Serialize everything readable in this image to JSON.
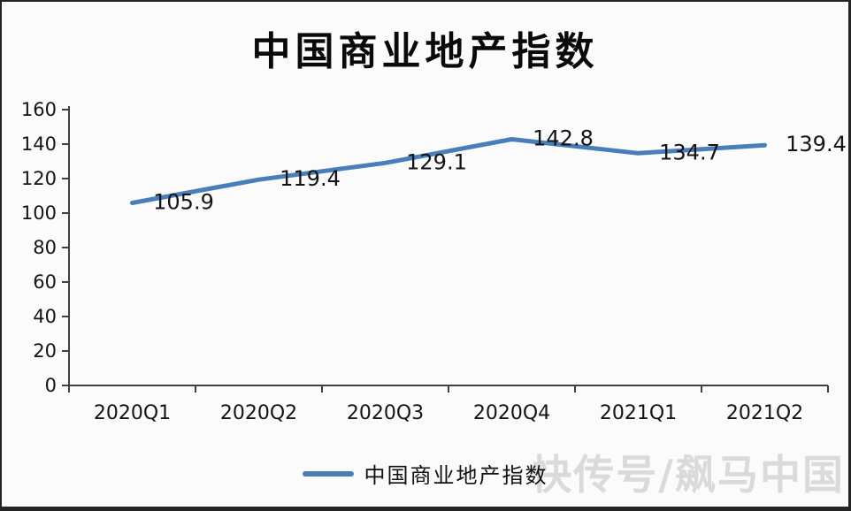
{
  "page": {
    "background": "#fbfbfb",
    "frame_color": "#242424"
  },
  "title": "中国商业地产指数",
  "chart_data": {
    "type": "line",
    "title": "中国商业地产指数",
    "categories": [
      "2020Q1",
      "2020Q2",
      "2020Q3",
      "2020Q4",
      "2021Q1",
      "2021Q2"
    ],
    "series": [
      {
        "name": "中国商业地产指数",
        "color": "#4a7ebb",
        "values": [
          105.9,
          119.4,
          129.1,
          142.8,
          134.7,
          139.4
        ]
      }
    ],
    "data_labels": [
      "105.9",
      "119.4",
      "129.1",
      "142.8",
      "134.7",
      "139.4"
    ],
    "ylim": [
      0,
      160
    ],
    "ytick_step": 20,
    "yticks": [
      0,
      20,
      40,
      60,
      80,
      100,
      120,
      140,
      160
    ],
    "grid": false,
    "legend_position": "bottom",
    "axis_color": "#3f3f3f",
    "label_color": "#141414"
  },
  "legend": {
    "label": "中国商业地产指数",
    "swatch_color": "#4a7ebb"
  },
  "watermark": "快传号/飙马中国"
}
